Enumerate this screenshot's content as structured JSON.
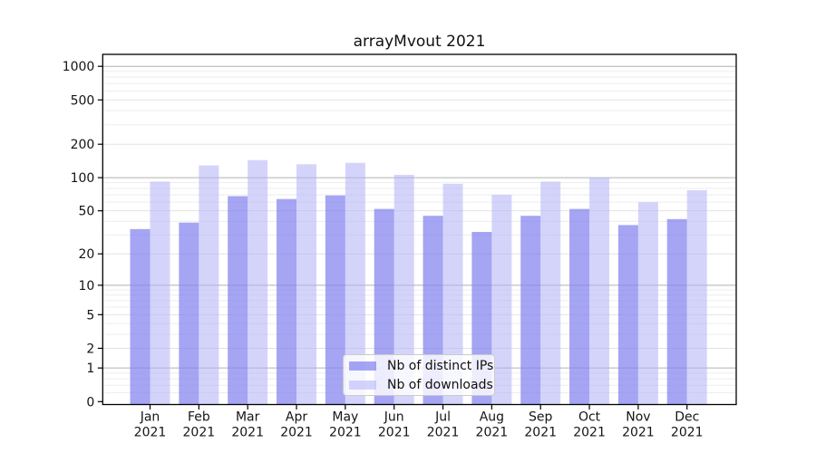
{
  "chart_data": {
    "type": "bar",
    "title": "arrayMvout 2021",
    "categories": [
      "Jan",
      "Feb",
      "Mar",
      "Apr",
      "May",
      "Jun",
      "Jul",
      "Aug",
      "Sep",
      "Oct",
      "Nov",
      "Dec"
    ],
    "year_label": "2021",
    "series": [
      {
        "name": "Nb of distinct IPs",
        "color": "rgba(132,132,240,0.73)",
        "solid_color": "#a6a6f3",
        "values": [
          34,
          39,
          68,
          64,
          69,
          52,
          45,
          32,
          45,
          52,
          37,
          42
        ]
      },
      {
        "name": "Nb of downloads",
        "color": "rgba(178,178,248,0.56)",
        "solid_color": "#d6d6fa",
        "values": [
          92,
          129,
          144,
          132,
          136,
          106,
          88,
          70,
          92,
          100,
          60,
          77
        ]
      }
    ],
    "yscale": "symlog",
    "yticks": [
      0,
      1,
      2,
      5,
      10,
      20,
      50,
      100,
      200,
      500,
      1000
    ],
    "yminor_ticks": [
      0.2,
      0.4,
      0.6,
      0.8,
      3,
      4,
      6,
      7,
      8,
      9,
      30,
      40,
      60,
      70,
      80,
      90,
      300,
      400,
      600,
      700,
      800,
      900
    ],
    "ylim": [
      0,
      1280
    ],
    "xlabel": "",
    "ylabel": "",
    "grid": {
      "horizontal_major": true,
      "horizontal_minor": true,
      "vertical": false
    },
    "legend_position": "lower center inside plot",
    "colors": {
      "grid_decade": "#b0b0b0",
      "grid_major_light": "#e2e2e2",
      "grid_minor": "#ededed",
      "axis": "#000000",
      "text": "#151515"
    }
  }
}
